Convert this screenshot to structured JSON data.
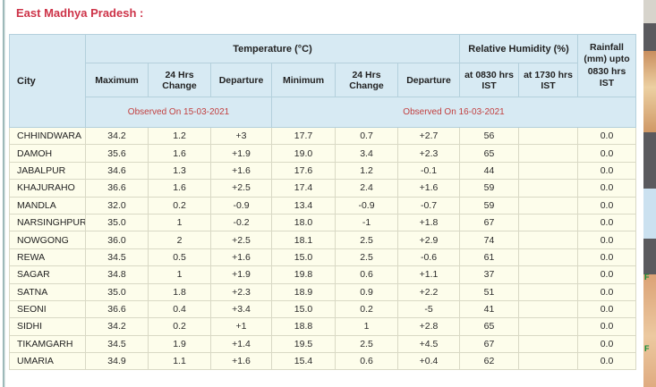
{
  "page": {
    "title": "East Madhya Pradesh :"
  },
  "table": {
    "group_headers": {
      "city": "City",
      "temperature": "Temperature (°C)",
      "humidity": "Relative Humidity (%)",
      "rainfall": "Rainfall (mm) upto 0830 hrs IST"
    },
    "columns": [
      "Maximum",
      "24 Hrs Change",
      "Departure",
      "Minimum",
      "24 Hrs Change",
      "Departure",
      "at 0830 hrs IST",
      "at 1730 hrs IST"
    ],
    "observed": [
      "Observed On 15-03-2021",
      "Observed On 16-03-2021"
    ],
    "rows": [
      {
        "city": "CHHINDWARA",
        "values": [
          "34.2",
          "1.2",
          "+3",
          "17.7",
          "0.7",
          "+2.7",
          "56",
          "",
          "0.0"
        ]
      },
      {
        "city": "DAMOH",
        "values": [
          "35.6",
          "1.6",
          "+1.9",
          "19.0",
          "3.4",
          "+2.3",
          "65",
          "",
          "0.0"
        ]
      },
      {
        "city": "JABALPUR",
        "values": [
          "34.6",
          "1.3",
          "+1.6",
          "17.6",
          "1.2",
          "-0.1",
          "44",
          "",
          "0.0"
        ]
      },
      {
        "city": "KHAJURAHO",
        "values": [
          "36.6",
          "1.6",
          "+2.5",
          "17.4",
          "2.4",
          "+1.6",
          "59",
          "",
          "0.0"
        ]
      },
      {
        "city": "MANDLA",
        "values": [
          "32.0",
          "0.2",
          "-0.9",
          "13.4",
          "-0.9",
          "-0.7",
          "59",
          "",
          "0.0"
        ]
      },
      {
        "city": "NARSINGHPUR",
        "values": [
          "35.0",
          "1",
          "-0.2",
          "18.0",
          "-1",
          "+1.8",
          "67",
          "",
          "0.0"
        ]
      },
      {
        "city": "NOWGONG",
        "values": [
          "36.0",
          "2",
          "+2.5",
          "18.1",
          "2.5",
          "+2.9",
          "74",
          "",
          "0.0"
        ]
      },
      {
        "city": "REWA",
        "values": [
          "34.5",
          "0.5",
          "+1.6",
          "15.0",
          "2.5",
          "-0.6",
          "61",
          "",
          "0.0"
        ]
      },
      {
        "city": "SAGAR",
        "values": [
          "34.8",
          "1",
          "+1.9",
          "19.8",
          "0.6",
          "+1.1",
          "37",
          "",
          "0.0"
        ]
      },
      {
        "city": "SATNA",
        "values": [
          "35.0",
          "1.8",
          "+2.3",
          "18.9",
          "0.9",
          "+2.2",
          "51",
          "",
          "0.0"
        ]
      },
      {
        "city": "SEONI",
        "values": [
          "36.6",
          "0.4",
          "+3.4",
          "15.0",
          "0.2",
          "-5",
          "41",
          "",
          "0.0"
        ]
      },
      {
        "city": "SIDHI",
        "values": [
          "34.2",
          "0.2",
          "+1",
          "18.8",
          "1",
          "+2.8",
          "65",
          "",
          "0.0"
        ]
      },
      {
        "city": "TIKAMGARH",
        "values": [
          "34.5",
          "1.9",
          "+1.4",
          "19.5",
          "2.5",
          "+4.5",
          "67",
          "",
          "0.0"
        ]
      },
      {
        "city": "UMARIA",
        "values": [
          "34.9",
          "1.1",
          "+1.6",
          "15.4",
          "0.6",
          "+0.4",
          "62",
          "",
          "0.0"
        ]
      }
    ]
  },
  "background_strip": {
    "labels": [
      "F",
      "F"
    ]
  },
  "colors": {
    "title_red": "#cd3348",
    "observed_red": "#c24040",
    "header_blue_bg": "#d7eaf3",
    "header_border_blue": "#b4d0dc",
    "row_yellow_bg": "#fdfdeb",
    "row_border": "#d9d9c5",
    "strip_dark_gray": "#5a5a5e",
    "strip_light_blue": "#cbe1f0",
    "strip_green_label": "#0b8c35"
  }
}
